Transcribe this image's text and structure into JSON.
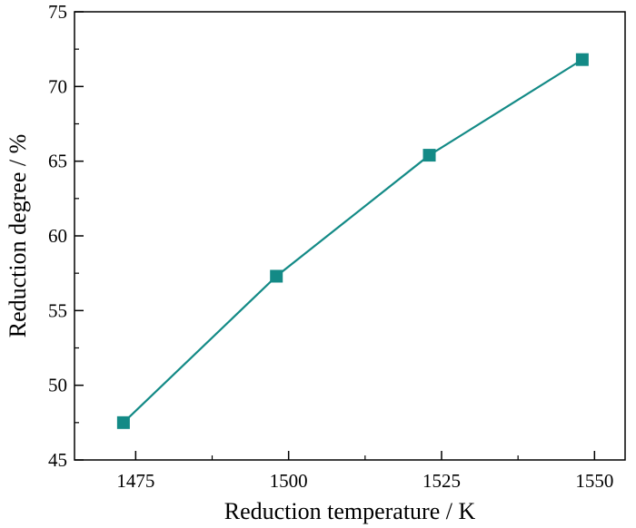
{
  "chart_data": {
    "type": "line",
    "title": "",
    "xlabel": "Reduction temperature / K",
    "ylabel": "Reduction degree / %",
    "x": [
      1473,
      1498,
      1523,
      1548
    ],
    "series": [
      {
        "name": "Reduction degree",
        "values": [
          47.5,
          57.3,
          65.4,
          71.8
        ],
        "color": "#138a86",
        "marker": "square"
      }
    ],
    "xlim": [
      1465,
      1555
    ],
    "ylim": [
      45,
      75
    ],
    "xticks": [
      1475,
      1500,
      1525,
      1550
    ],
    "yticks": [
      45,
      50,
      55,
      60,
      65,
      70,
      75
    ],
    "grid": false,
    "legend": "none"
  }
}
